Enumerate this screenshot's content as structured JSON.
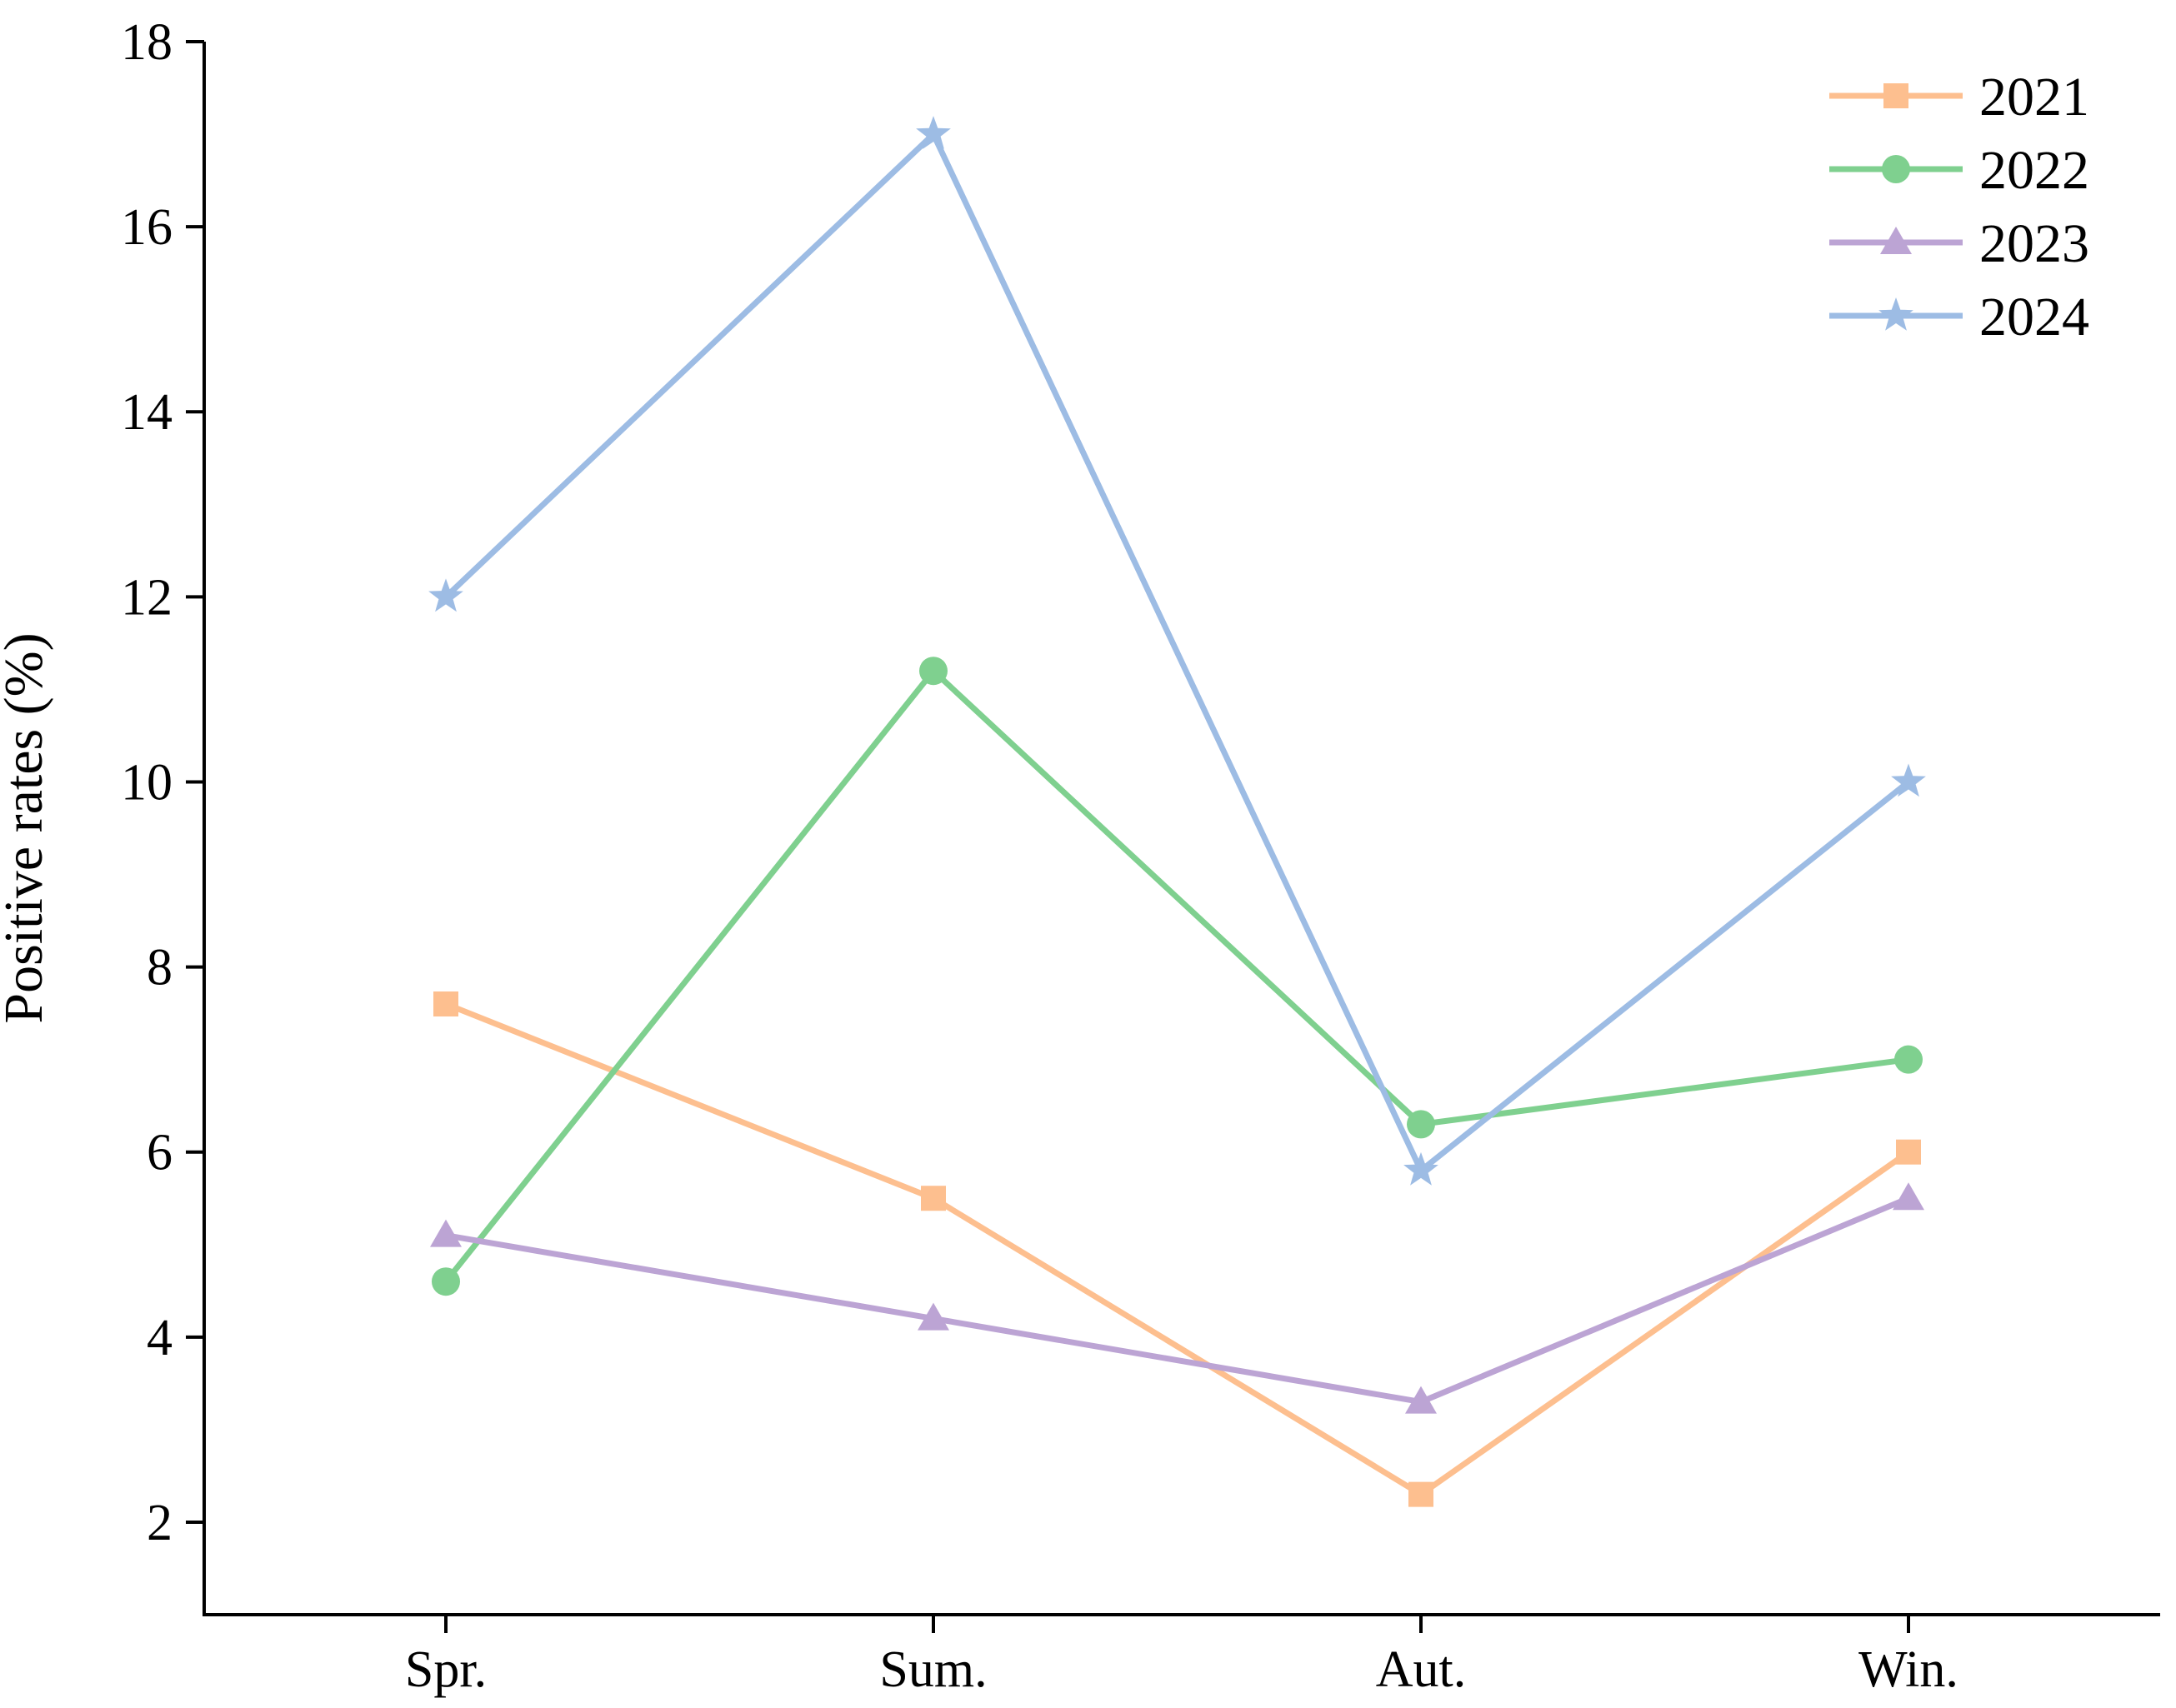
{
  "chart_data": {
    "type": "line",
    "title": "",
    "xlabel": "",
    "ylabel": "Positive rates (%)",
    "categories": [
      "Spr.",
      "Sum.",
      "Aut.",
      "Win."
    ],
    "ylim": [
      1,
      18
    ],
    "yticks": [
      2,
      4,
      6,
      8,
      10,
      12,
      14,
      16,
      18
    ],
    "ytick_labels": [
      "2",
      "4",
      "6",
      "8",
      "10",
      "12",
      "14",
      "16",
      "18"
    ],
    "grid": false,
    "legend_position": "top-right",
    "series": [
      {
        "name": "2021",
        "values": [
          7.6,
          5.5,
          2.3,
          6.0
        ],
        "color": "#FDBF8F",
        "marker": "square"
      },
      {
        "name": "2022",
        "values": [
          4.6,
          11.2,
          6.3,
          7.0
        ],
        "color": "#7FD08F",
        "marker": "circle"
      },
      {
        "name": "2023",
        "values": [
          5.1,
          4.2,
          3.3,
          5.5
        ],
        "color": "#BCA4D4",
        "marker": "triangle"
      },
      {
        "name": "2024",
        "values": [
          12.0,
          17.0,
          5.8,
          10.0
        ],
        "color": "#9DBCE4",
        "marker": "star"
      }
    ]
  }
}
